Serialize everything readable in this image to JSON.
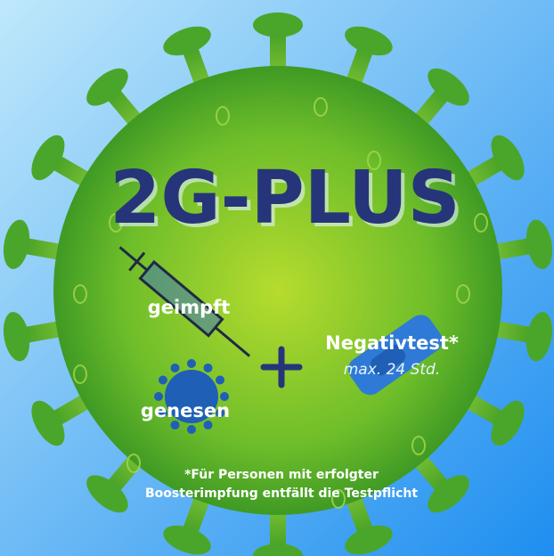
{
  "poster": {
    "title": "2G-PLUS",
    "vaccinated": "geimpft",
    "recovered": "genesen",
    "test": "Negativtest*",
    "test_validity": "max. 24 Std.",
    "footnote": [
      "*Für Personen mit erfolgter",
      "Boosterimpfung entfällt die Testpflicht"
    ]
  }
}
